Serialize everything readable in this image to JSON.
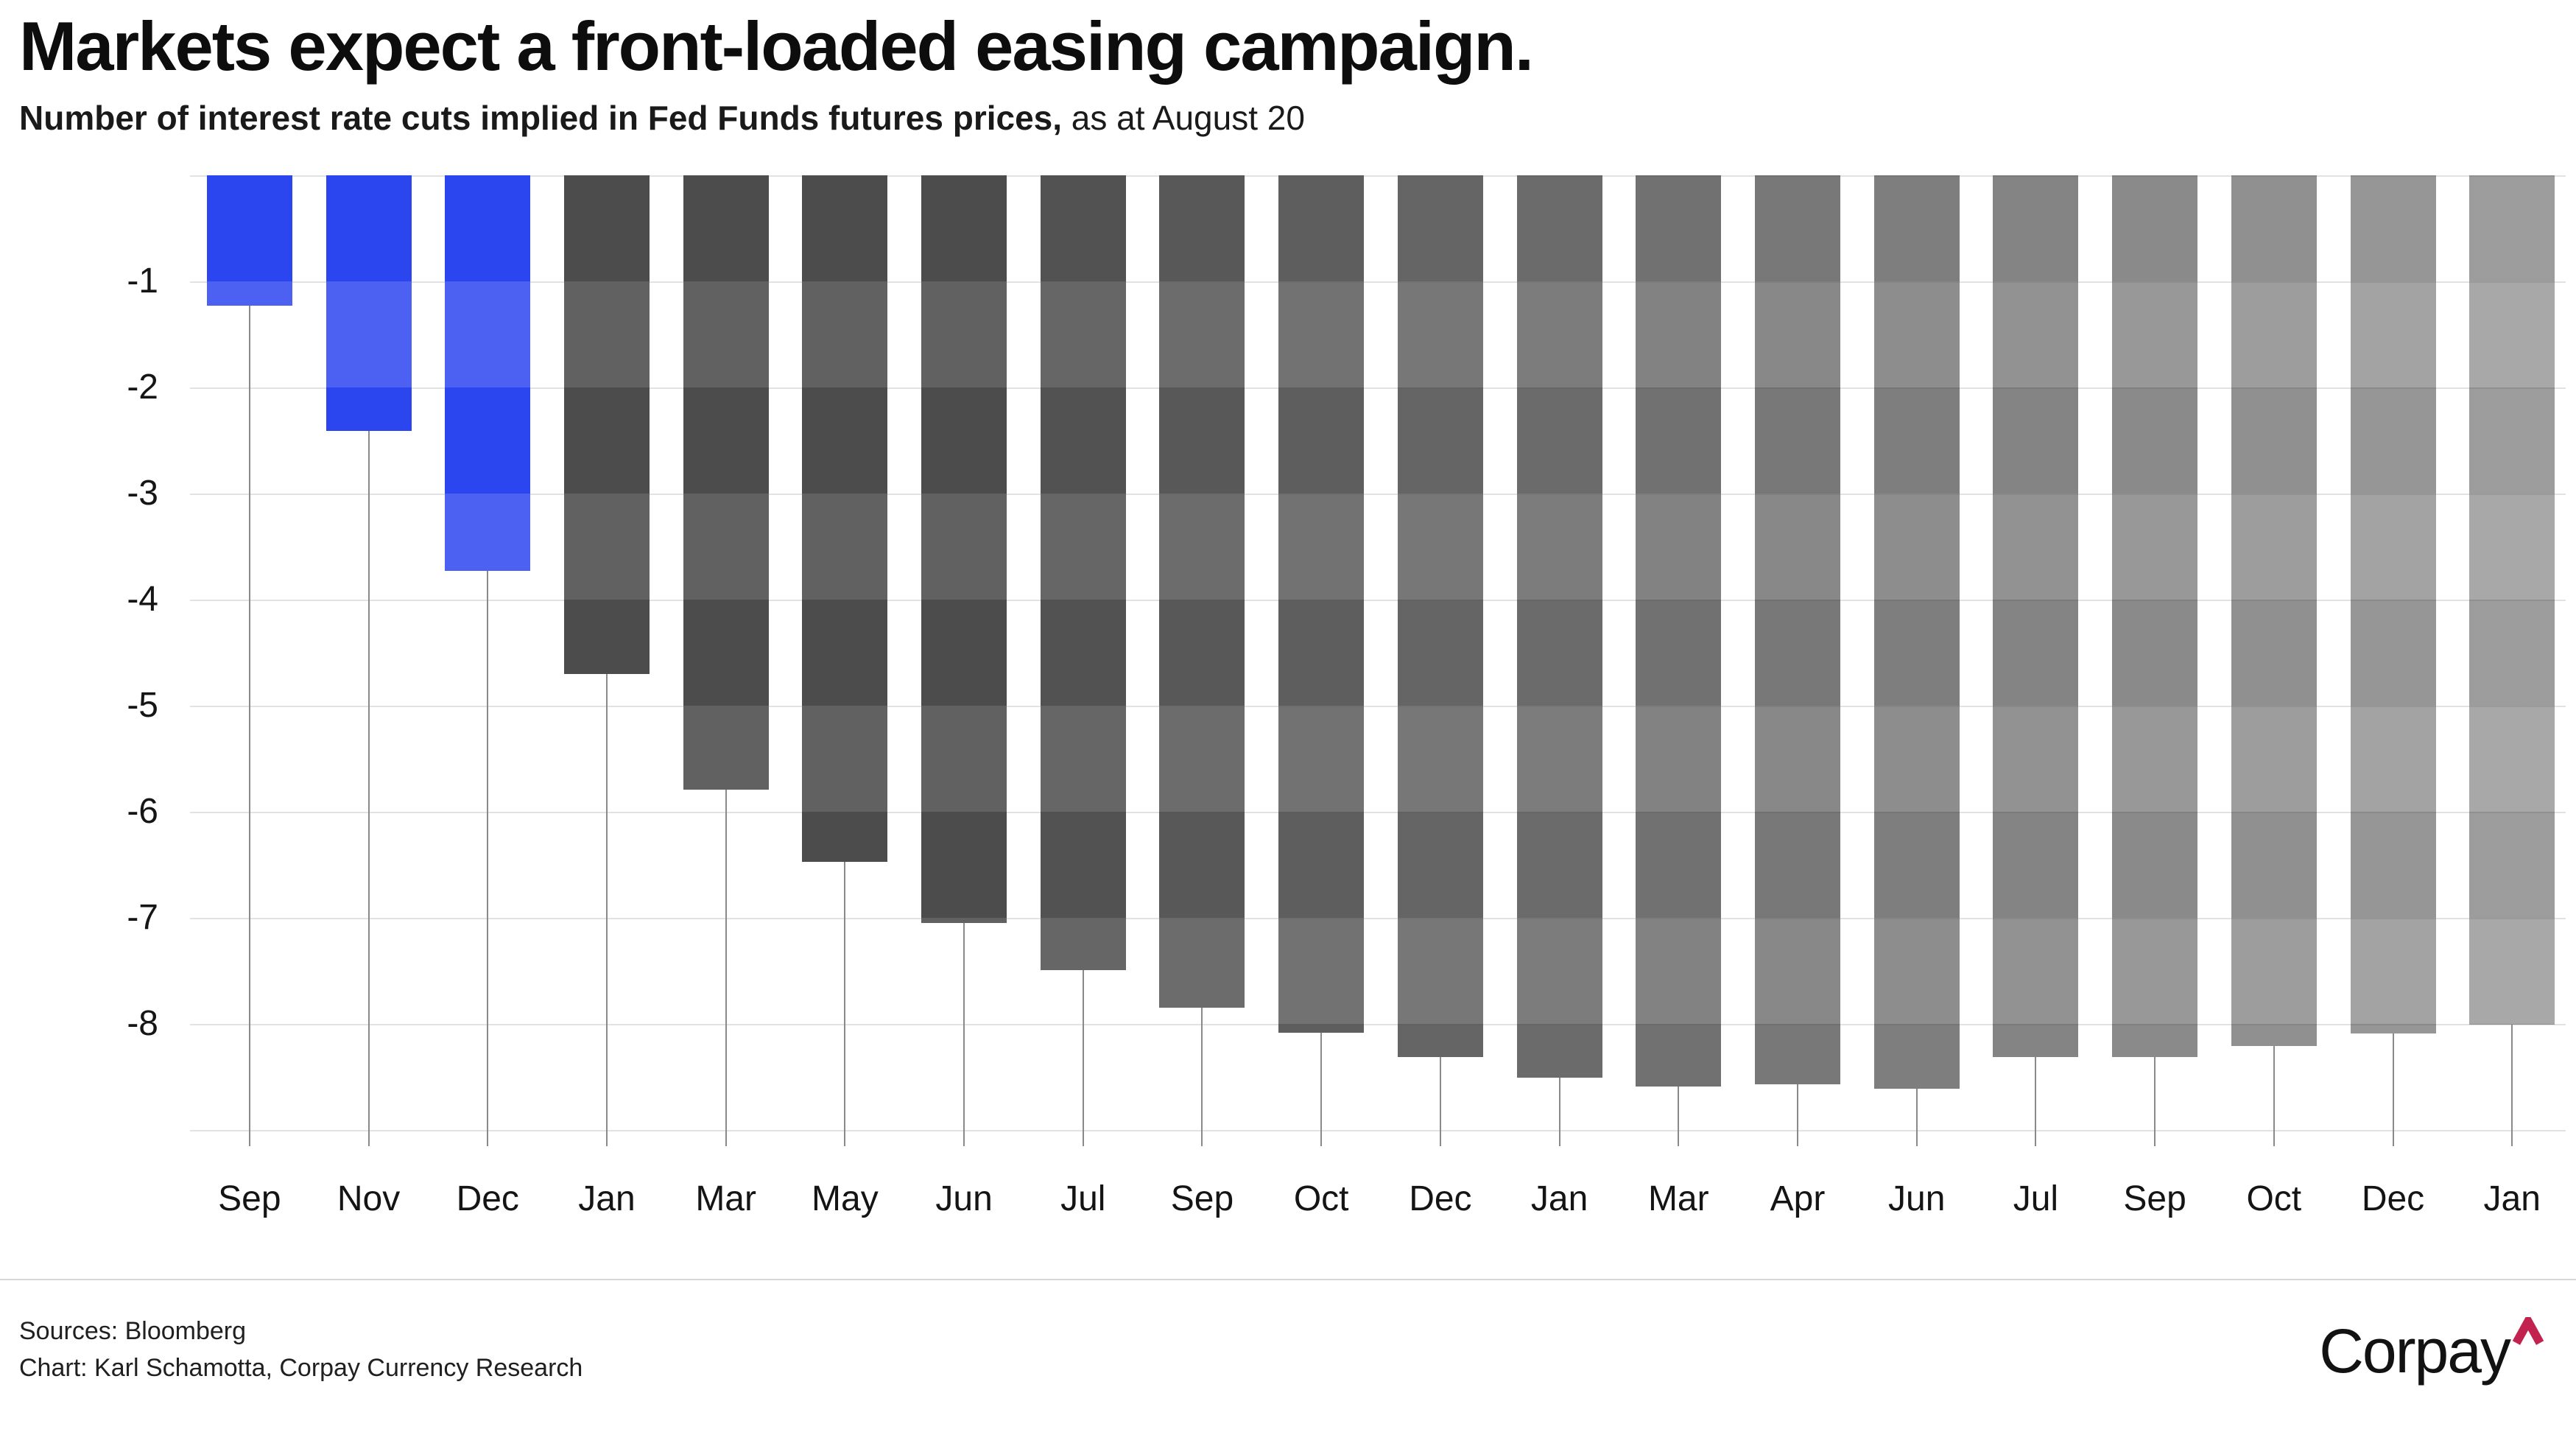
{
  "header": {
    "title": "Markets expect a front-loaded easing campaign.",
    "subtitle_bold": "Number of interest rate cuts implied in Fed Funds futures prices,",
    "subtitle_regular": " as at August 20"
  },
  "chart_data": {
    "type": "bar",
    "title": "Markets expect a front-loaded easing campaign.",
    "subtitle": "Number of interest rate cuts implied in Fed Funds futures prices, as at August 20",
    "categories": [
      "Sep",
      "Nov",
      "Dec",
      "Jan",
      "Mar",
      "May",
      "Jun",
      "Jul",
      "Sep",
      "Oct",
      "Dec",
      "Jan",
      "Mar",
      "Apr",
      "Jun",
      "Jul",
      "Sep",
      "Oct",
      "Dec",
      "Jan"
    ],
    "values": [
      -1.23,
      -2.41,
      -3.73,
      -4.7,
      -5.79,
      -6.47,
      -7.05,
      -7.49,
      -7.85,
      -8.08,
      -8.31,
      -8.51,
      -8.59,
      -8.57,
      -8.61,
      -8.31,
      -8.31,
      -8.21,
      -8.09,
      -8.01
    ],
    "yticks": [
      -1,
      -2,
      -3,
      -4,
      -5,
      -6,
      -7,
      -8
    ],
    "ylim": [
      -9,
      0
    ],
    "xlabel": "",
    "ylabel": "",
    "grid": "horizontal lines at each integer from 0 to -9",
    "legend": "none",
    "highlight_first_n_bars": 3,
    "band_interval": 1,
    "colors": {
      "blue_dark": "#2b46ef",
      "blue_light": "#4c60f2",
      "gray_dark": "#4c4c4c",
      "gray_light": "#616161",
      "gridline": "#e2e2e2",
      "stem": "#8a8a8a",
      "text": "#111111"
    }
  },
  "footer": {
    "sources": "Sources: Bloomberg",
    "credit": "Chart: Karl Schamotta, Corpay Currency Research",
    "logo_text": "Corpay",
    "logo_caret_color": "#c2224e"
  }
}
